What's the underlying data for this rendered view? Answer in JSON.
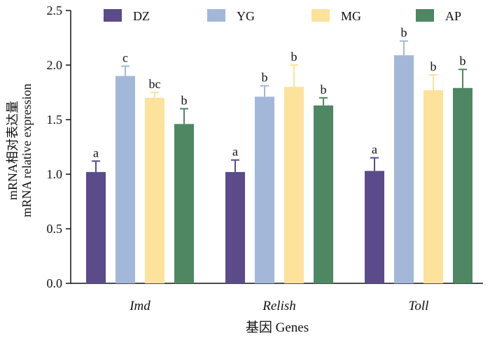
{
  "chart_data": {
    "type": "bar",
    "title": "",
    "xlabel": "基因 Genes",
    "ylabel_line1": "mRNA相对表达量",
    "ylabel_line2": "mRNA relative expression",
    "ylim": [
      0,
      2.5
    ],
    "yticks": [
      "0.0",
      "0.5",
      "1.0",
      "1.5",
      "2.0",
      "2.5"
    ],
    "categories": [
      "Imd",
      "Relish",
      "Toll"
    ],
    "series": [
      {
        "name": "DZ",
        "color": "#5b4b8a",
        "values": [
          1.02,
          1.02,
          1.03
        ],
        "errors": [
          0.1,
          0.11,
          0.12
        ],
        "labels": [
          "a",
          "a",
          "a"
        ]
      },
      {
        "name": "YG",
        "color": "#a3b8d9",
        "values": [
          1.9,
          1.71,
          2.09
        ],
        "errors": [
          0.09,
          0.1,
          0.13
        ],
        "labels": [
          "c",
          "b",
          "b"
        ]
      },
      {
        "name": "MG",
        "color": "#fce29a",
        "values": [
          1.7,
          1.8,
          1.77
        ],
        "errors": [
          0.05,
          0.2,
          0.14
        ],
        "labels": [
          "bc",
          "b",
          "b"
        ]
      },
      {
        "name": "AP",
        "color": "#4e8762",
        "values": [
          1.46,
          1.63,
          1.79
        ],
        "errors": [
          0.14,
          0.07,
          0.17
        ],
        "labels": [
          "b",
          "b",
          "b"
        ]
      }
    ],
    "legend": "top"
  }
}
